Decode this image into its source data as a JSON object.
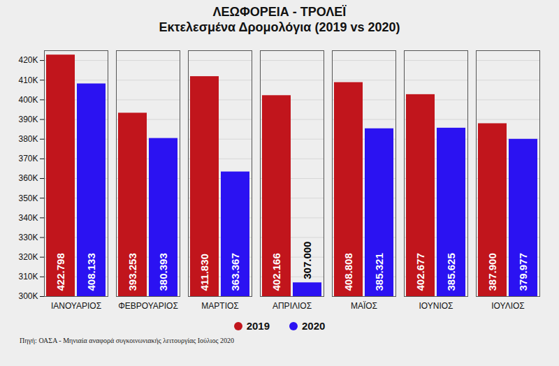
{
  "chart_data": {
    "type": "bar",
    "title": "ΛΕΩΦΟΡΕΙΑ - ΤΡΟΛΕΪ",
    "subtitle": "Εκτελεσμένα Δρομολόγια (2019 vs 2020)",
    "caption": "Πηγή: ΟΑΣΑ - Μηνιαία αναφορά συγκοινωνιακής λειτουργίας Ιούλιος 2020",
    "categories": [
      "ΙΑΝΟΥΑΡΙΟΣ",
      "ΦΕΒΡΟΥΑΡΙΟΣ",
      "ΜΑΡΤΙΟΣ",
      "ΑΠΡΙΛΙΟΣ",
      "ΜΑΪΟΣ",
      "ΙΟΥΝΙΟΣ",
      "ΙΟΥΛΙΟΣ"
    ],
    "series": [
      {
        "name": "2019",
        "color": "#c1151c",
        "values": [
          422798,
          393253,
          411830,
          402166,
          408808,
          402677,
          387900
        ],
        "value_labels": [
          "422.798",
          "393.253",
          "411.830",
          "402.166",
          "408.808",
          "402.677",
          "387.900"
        ]
      },
      {
        "name": "2020",
        "color": "#2b12f2",
        "values": [
          408133,
          380393,
          363367,
          307000,
          385321,
          385625,
          379977
        ],
        "value_labels": [
          "408.133",
          "380.393",
          "363.367",
          "307.000",
          "385.321",
          "385.625",
          "379.977"
        ]
      }
    ],
    "ylim": [
      300000,
      425000
    ],
    "yticks": [
      {
        "value": 300000,
        "label": "300K"
      },
      {
        "value": 310000,
        "label": "310K"
      },
      {
        "value": 320000,
        "label": "320K"
      },
      {
        "value": 330000,
        "label": "330K"
      },
      {
        "value": 340000,
        "label": "340K"
      },
      {
        "value": 350000,
        "label": "350K"
      },
      {
        "value": 360000,
        "label": "360K"
      },
      {
        "value": 370000,
        "label": "370K"
      },
      {
        "value": 380000,
        "label": "380K"
      },
      {
        "value": 390000,
        "label": "390K"
      },
      {
        "value": 400000,
        "label": "400K"
      },
      {
        "value": 410000,
        "label": "410K"
      },
      {
        "value": 420000,
        "label": "420K"
      }
    ],
    "grid": true,
    "data_labels": true,
    "legend": "bottom"
  }
}
